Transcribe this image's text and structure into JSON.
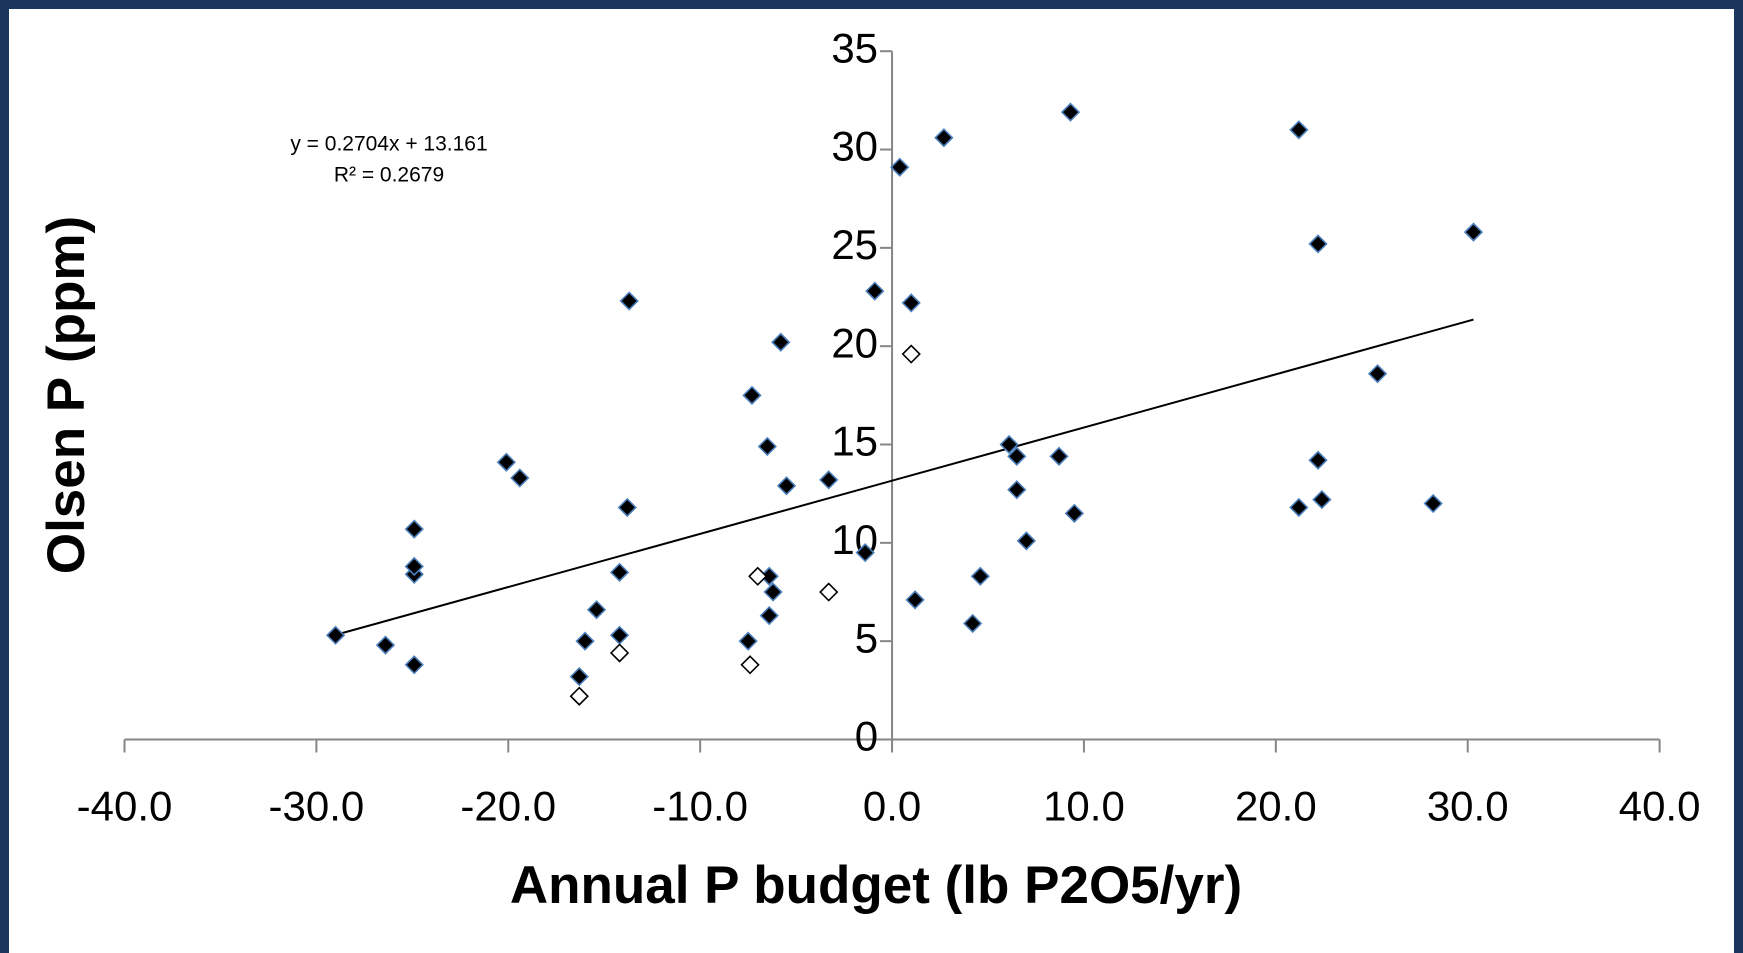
{
  "chart_data": {
    "type": "scatter",
    "x_label": "Annual P budget (lb P2O5/yr)",
    "y_label": "Olsen P (ppm)",
    "xlim": [
      -40,
      40
    ],
    "ylim": [
      0,
      35
    ],
    "xticks": [
      {
        "value": -40,
        "label": "-40.0"
      },
      {
        "value": -30,
        "label": "-30.0"
      },
      {
        "value": -20,
        "label": "-20.0"
      },
      {
        "value": -10,
        "label": "-10.0"
      },
      {
        "value": 0,
        "label": "0.0"
      },
      {
        "value": 10,
        "label": "10.0"
      },
      {
        "value": 20,
        "label": "20.0"
      },
      {
        "value": 30,
        "label": "30.0"
      },
      {
        "value": 40,
        "label": "40.0"
      }
    ],
    "yticks": [
      0,
      5,
      10,
      15,
      20,
      25,
      30,
      35
    ],
    "grid": false,
    "series": [
      {
        "color": "#000000",
        "edge_color": "#4a7ebb",
        "x": [
          -29.0,
          -26.4,
          -24.9,
          -24.9,
          -24.9,
          -24.9,
          -20.1,
          -19.4,
          -16.3,
          -16.3,
          -16.0,
          -15.4,
          -14.2,
          -14.2,
          -13.8,
          -13.7,
          -7.5,
          -7.3,
          -6.5,
          -6.4,
          -6.2,
          -6.4,
          -5.8,
          -5.5,
          -3.3,
          -1.4,
          -0.9,
          0.4,
          1.0,
          1.2,
          2.7,
          4.2,
          4.6,
          6.1,
          6.5,
          6.5,
          7.0,
          8.7,
          9.3,
          9.5,
          21.2,
          21.2,
          22.2,
          22.2,
          22.4,
          25.3,
          28.2,
          30.3
        ],
        "values": [
          5.3,
          4.8,
          3.8,
          8.4,
          8.8,
          10.7,
          14.1,
          13.3,
          2.2,
          3.2,
          5.0,
          6.6,
          5.3,
          8.5,
          11.8,
          22.3,
          5.0,
          17.5,
          14.9,
          8.3,
          7.5,
          6.3,
          20.2,
          12.9,
          13.2,
          9.5,
          22.8,
          29.1,
          22.2,
          7.1,
          30.6,
          5.9,
          8.3,
          15.0,
          14.4,
          12.7,
          10.1,
          14.4,
          31.9,
          11.5,
          31.0,
          11.8,
          25.2,
          14.2,
          12.2,
          18.6,
          12.0,
          25.8
        ]
      },
      {
        "color": "#ffffff",
        "edge_color": "#000000",
        "x": [
          1.0,
          -7.0,
          -3.3,
          -14.2,
          -7.4,
          -16.3
        ],
        "values": [
          19.6,
          8.3,
          7.5,
          4.4,
          3.8,
          2.2
        ]
      }
    ],
    "trendline": {
      "equation": "y = 0.2704x + 13.161",
      "r_squared": "R² = 0.2679",
      "slope": 0.2704,
      "intercept": 13.161,
      "color": "#000000"
    }
  }
}
